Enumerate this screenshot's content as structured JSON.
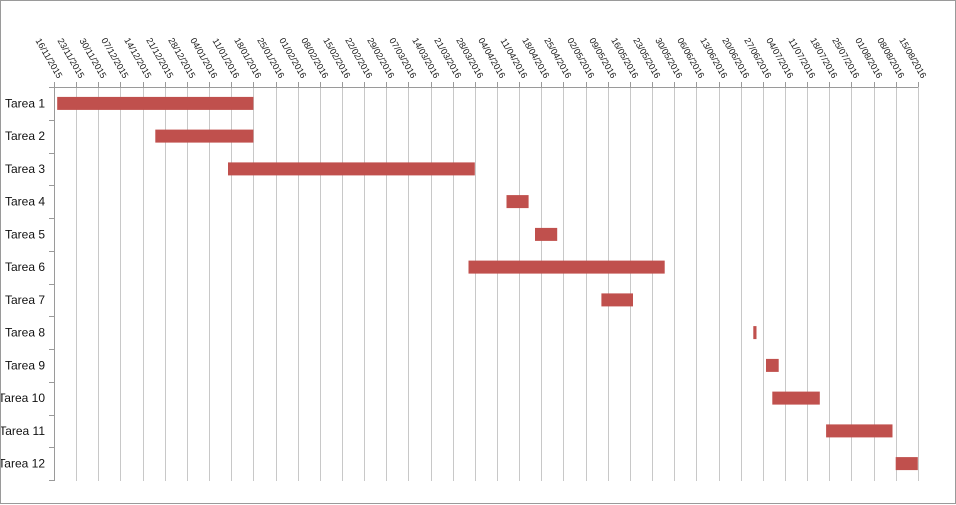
{
  "chart_data": {
    "type": "gantt",
    "title": "",
    "xlabel": "",
    "ylabel": "",
    "x_axis_position": "top",
    "grid": true,
    "legend": "none",
    "bar_color": "#c0504d",
    "gridline_color": "#c8c8c8",
    "axis_color": "#9a9a9a",
    "xlim": [
      "2015-11-16",
      "2016-08-22"
    ],
    "tick_interval_days": 7,
    "ticks": [
      "16/11/2015",
      "23/11/2015",
      "30/11/2015",
      "07/12/2015",
      "14/12/2015",
      "21/12/2015",
      "28/12/2015",
      "04/01/2016",
      "11/01/2016",
      "18/01/2016",
      "25/01/2016",
      "01/02/2016",
      "08/02/2016",
      "15/02/2016",
      "22/02/2016",
      "29/02/2016",
      "07/03/2016",
      "14/03/2016",
      "21/03/2016",
      "28/03/2016",
      "04/04/2016",
      "11/04/2016",
      "18/04/2016",
      "25/04/2016",
      "02/05/2016",
      "09/05/2016",
      "16/05/2016",
      "23/05/2016",
      "30/05/2016",
      "06/06/2016",
      "13/06/2016",
      "20/06/2016",
      "27/06/2016",
      "04/07/2016",
      "11/07/2016",
      "18/07/2016",
      "25/07/2016",
      "01/08/2016",
      "08/08/2016",
      "15/08/2016"
    ],
    "categories": [
      "Tarea 1",
      "Tarea 2",
      "Tarea 3",
      "Tarea 4",
      "Tarea 5",
      "Tarea 6",
      "Tarea 7",
      "Tarea 8",
      "Tarea 9",
      "Tarea 10",
      "Tarea 11",
      "Tarea 12"
    ],
    "tasks": [
      {
        "label": "Tarea 1",
        "start": "2015-11-17",
        "end": "2016-01-18"
      },
      {
        "label": "Tarea 2",
        "start": "2015-12-18",
        "end": "2016-01-18"
      },
      {
        "label": "Tarea 3",
        "start": "2016-01-10",
        "end": "2016-03-28"
      },
      {
        "label": "Tarea 4",
        "start": "2016-04-07",
        "end": "2016-04-14"
      },
      {
        "label": "Tarea 5",
        "start": "2016-04-16",
        "end": "2016-04-23"
      },
      {
        "label": "Tarea 6",
        "start": "2016-03-26",
        "end": "2016-05-27"
      },
      {
        "label": "Tarea 7",
        "start": "2016-05-07",
        "end": "2016-05-17"
      },
      {
        "label": "Tarea 8",
        "start": "2016-06-24",
        "end": "2016-06-25"
      },
      {
        "label": "Tarea 9",
        "start": "2016-06-28",
        "end": "2016-07-02"
      },
      {
        "label": "Tarea 10",
        "start": "2016-06-30",
        "end": "2016-07-15"
      },
      {
        "label": "Tarea 11",
        "start": "2016-07-17",
        "end": "2016-08-07"
      },
      {
        "label": "Tarea 12",
        "start": "2016-08-08",
        "end": "2016-08-15"
      }
    ]
  }
}
